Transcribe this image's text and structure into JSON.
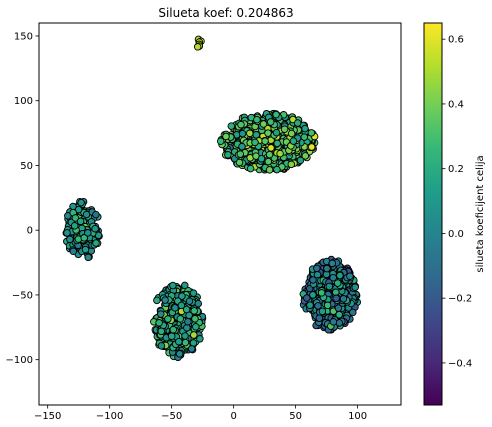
{
  "chart_data": {
    "type": "scatter",
    "title": "Silueta koef: 0.204863",
    "xlabel": "",
    "ylabel": "",
    "xlim": [
      -157,
      135
    ],
    "ylim": [
      -135,
      160
    ],
    "xticks": [
      -150,
      -100,
      -50,
      0,
      50,
      100
    ],
    "yticks": [
      -100,
      -50,
      0,
      50,
      100,
      150
    ],
    "grid": false,
    "marker": {
      "shape": "circle",
      "edge_color": "#000000",
      "fill": "colormap"
    },
    "colormap": "viridis",
    "colorbar": {
      "label": "silueta koeficijent celija",
      "range": [
        -0.53,
        0.65
      ],
      "ticks": [
        -0.4,
        -0.2,
        0.0,
        0.2,
        0.4,
        0.6
      ],
      "tick_labels": [
        "−0.4",
        "−0.2",
        "0.0",
        "0.2",
        "0.4",
        "0.6"
      ]
    },
    "clusters": [
      {
        "name": "",
        "center": [
          -28,
          145
        ],
        "spread": [
          2,
          4
        ],
        "count": 6,
        "coef_mean": 0.62
      },
      {
        "name": "",
        "center": [
          -122,
          0
        ],
        "spread": [
          14,
          22
        ],
        "count": 230,
        "coef_mean": 0.18
      },
      {
        "name": "",
        "center": [
          28,
          68
        ],
        "spread": [
          38,
          22
        ],
        "count": 1100,
        "coef_mean": 0.35
      },
      {
        "name": "",
        "center": [
          -45,
          -70
        ],
        "spread": [
          20,
          28
        ],
        "count": 600,
        "coef_mean": 0.25
      },
      {
        "name": "",
        "center": [
          78,
          -50
        ],
        "spread": [
          22,
          27
        ],
        "count": 650,
        "coef_mean": 0.05
      }
    ]
  }
}
